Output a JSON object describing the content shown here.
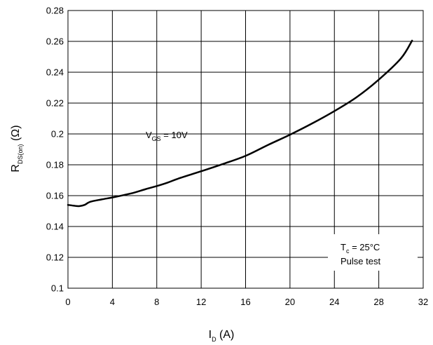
{
  "chart_data": {
    "type": "line",
    "title": "",
    "xlabel_main": "I",
    "xlabel_sub": "D",
    "xlabel_unit": " (A)",
    "ylabel_main": "R",
    "ylabel_sub": "DS(on)",
    "ylabel_unit": " (Ω)",
    "xlim": [
      0,
      32
    ],
    "ylim": [
      0.1,
      0.28
    ],
    "xticks": [
      0,
      4,
      8,
      12,
      16,
      20,
      24,
      28,
      32
    ],
    "xtick_labels": [
      "0",
      "4",
      "8",
      "12",
      "16",
      "20",
      "24",
      "28",
      "32"
    ],
    "yticks": [
      0.1,
      0.12,
      0.14,
      0.16,
      0.18,
      0.2,
      0.22,
      0.24,
      0.26,
      0.28
    ],
    "ytick_labels": [
      "0.1",
      "0.12",
      "0.14",
      "0.16",
      "0.18",
      "0.2",
      "0.22",
      "0.24",
      "0.26",
      "0.28"
    ],
    "grid": true,
    "series": [
      {
        "x": [
          0,
          0.5,
          1,
          1.5,
          2,
          3,
          4,
          5,
          6,
          7,
          8,
          9,
          10,
          12,
          14,
          16,
          18,
          20,
          22,
          24,
          26,
          28,
          30,
          31
        ],
        "y": [
          0.154,
          0.1535,
          0.1532,
          0.154,
          0.156,
          0.1575,
          0.1588,
          0.1603,
          0.162,
          0.1642,
          0.1662,
          0.1685,
          0.1712,
          0.1758,
          0.1806,
          0.1858,
          0.1928,
          0.1995,
          0.2068,
          0.2148,
          0.2238,
          0.2352,
          0.249,
          0.2605
        ]
      }
    ],
    "annotations": {
      "vgs_main": "V",
      "vgs_sub": "GS",
      "vgs_rest": " = 10V",
      "tc_main": "T",
      "tc_sub": "c",
      "tc_rest": " = 25°C",
      "pulse": "Pulse test"
    }
  }
}
